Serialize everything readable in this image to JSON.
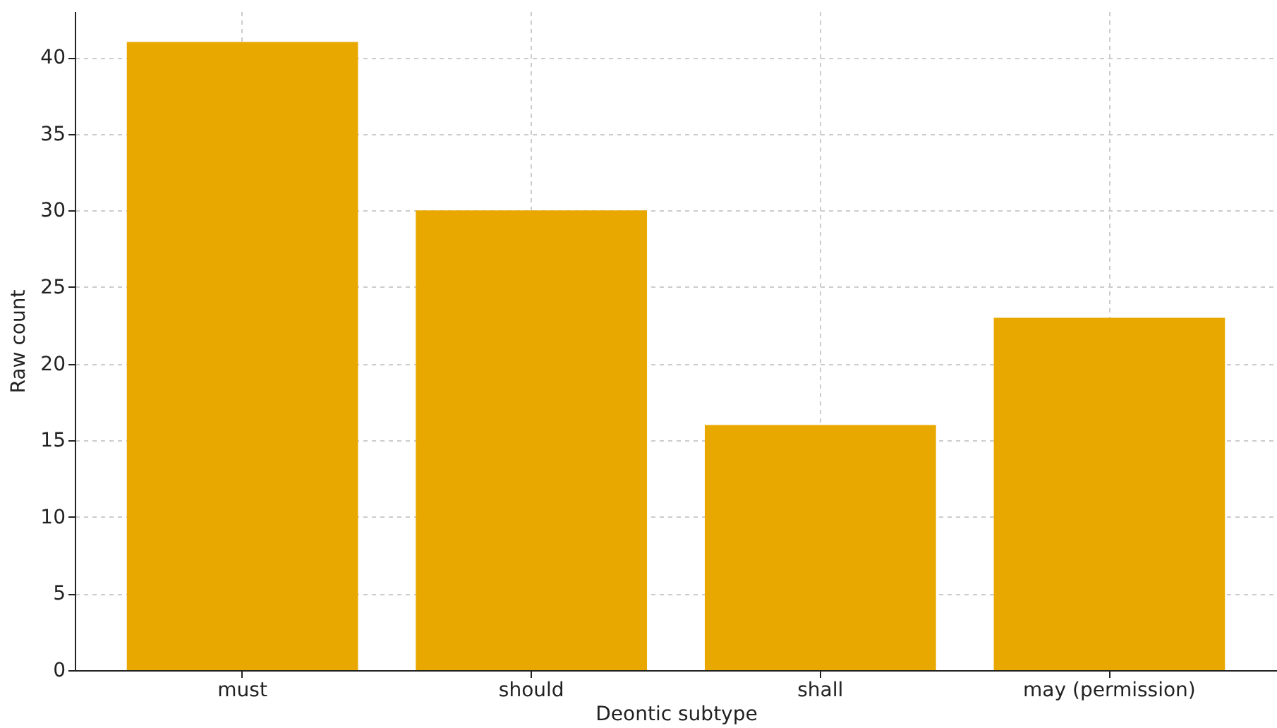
{
  "chart_data": {
    "type": "bar",
    "xlabel": "Deontic subtype",
    "ylabel": "Raw count",
    "categories": [
      "must",
      "should",
      "shall",
      "may (permission)"
    ],
    "values": [
      41,
      30,
      16,
      23
    ],
    "color": "#e8a800",
    "ylim": [
      0,
      43
    ],
    "yticks": [
      0,
      5,
      10,
      15,
      20,
      25,
      30,
      35,
      40
    ],
    "grid": true
  }
}
